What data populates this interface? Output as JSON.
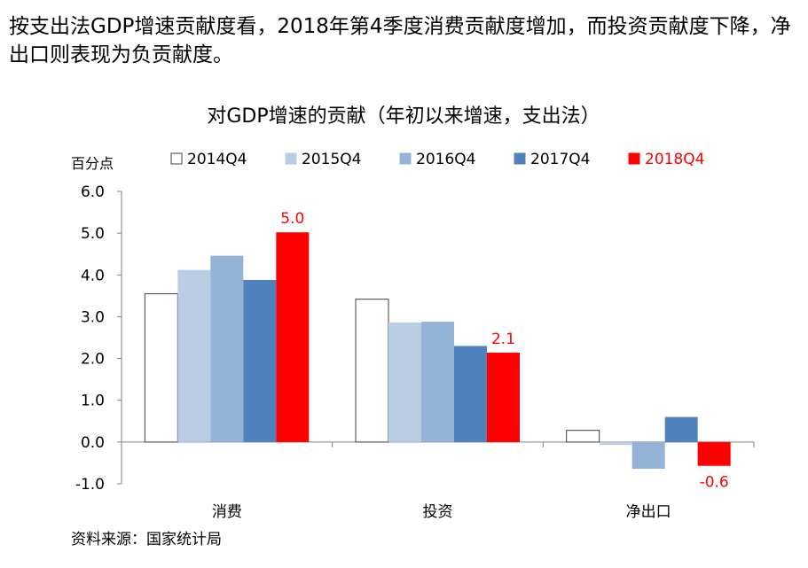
{
  "headline": "按支出法GDP增速贡献度看，2018年第4季度消费贡献度增加，而投资贡献度下降，净出口则表现为负贡献度。",
  "source": "资料来源：国家统计局",
  "chart_data": {
    "type": "bar",
    "title": "对GDP增速的贡献（年初以来增速，支出法）",
    "ylabel": "百分点",
    "ylim": [
      -1.0,
      6.0
    ],
    "yticks": [
      -1.0,
      0.0,
      1.0,
      2.0,
      3.0,
      4.0,
      5.0,
      6.0
    ],
    "tick_labels": [
      "-1.0",
      "0.0",
      "1.0",
      "2.0",
      "3.0",
      "4.0",
      "5.0",
      "6.0"
    ],
    "categories": [
      "消费",
      "投资",
      "净出口"
    ],
    "legend_position": "top",
    "series": [
      {
        "name": "2014Q4",
        "color": "#ffffff",
        "values": [
          3.55,
          3.42,
          0.28
        ]
      },
      {
        "name": "2015Q4",
        "color": "#b9cde5",
        "values": [
          4.12,
          2.86,
          -0.07
        ]
      },
      {
        "name": "2016Q4",
        "color": "#95b3d7",
        "values": [
          4.46,
          2.88,
          -0.64
        ]
      },
      {
        "name": "2017Q4",
        "color": "#4f81bd",
        "values": [
          3.88,
          2.3,
          0.6
        ]
      },
      {
        "name": "2018Q4",
        "color": "#ff0000",
        "values": [
          5.02,
          2.14,
          -0.57
        ]
      }
    ],
    "data_labels": [
      {
        "series": "2018Q4",
        "category": "消费",
        "text": "5.0"
      },
      {
        "series": "2018Q4",
        "category": "投资",
        "text": "2.1"
      },
      {
        "series": "2018Q4",
        "category": "净出口",
        "text": "-0.6"
      }
    ]
  }
}
